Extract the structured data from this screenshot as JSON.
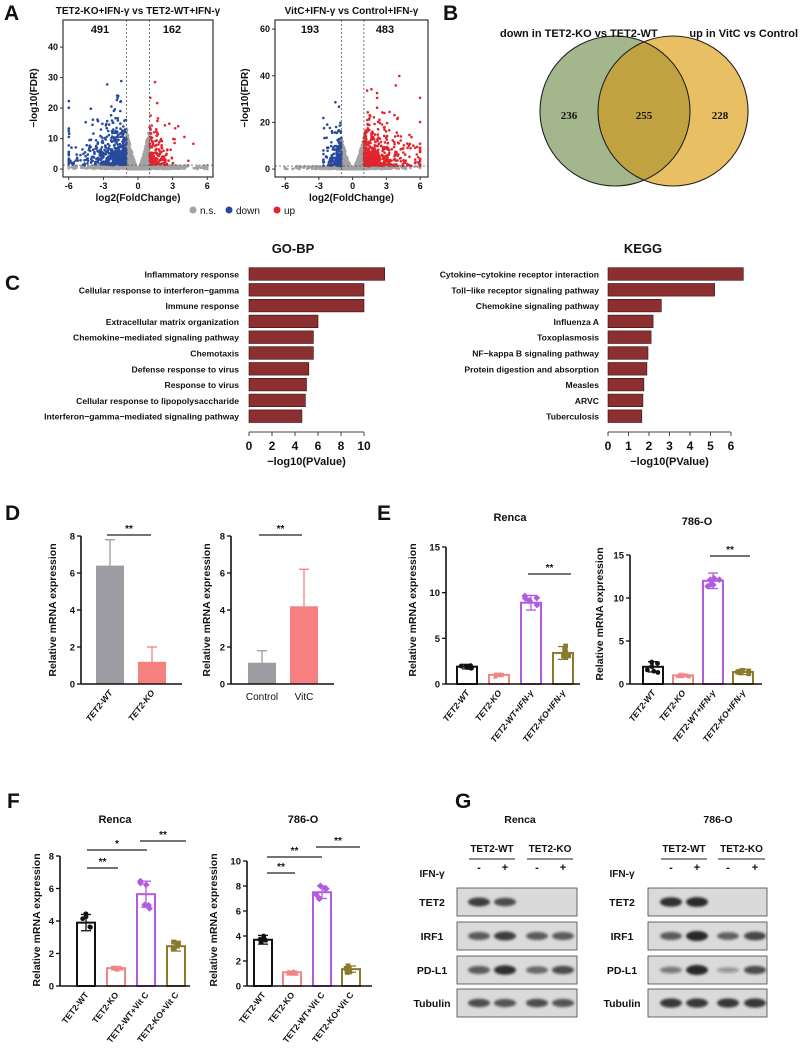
{
  "panel_labels": [
    "A",
    "B",
    "C",
    "D",
    "E",
    "F",
    "G"
  ],
  "volcano_legend": [
    {
      "label": "n.s.",
      "color": "#a3a3a3"
    },
    {
      "label": "down",
      "color": "#274a9c"
    },
    {
      "label": "up",
      "color": "#e2252c"
    }
  ],
  "venn": {
    "left_title": "down in TET2-KO vs TET2-WT",
    "right_title": "up in VitC vs Control",
    "left_only": "236",
    "overlap": "255",
    "right_only": "228",
    "left_title_color": "#1f2bbf",
    "right_title_color": "#d8222b",
    "left_color": "#a4b68b",
    "right_color": "#e8bf63",
    "overlap_color": "#c1a240"
  },
  "chart_data": [
    {
      "id": "A1",
      "type": "scatter",
      "title": "TET2-KO+IFN-γ vs TET2-WT+IFN-γ",
      "xlabel": "log2(FoldChange)",
      "ylabel": "−log10(FDR)",
      "xlim": [
        -6.5,
        6.5
      ],
      "ylim": [
        -2.6,
        48.9
      ],
      "xticks": [
        -6,
        -3,
        0,
        3,
        6
      ],
      "yticks": [
        0,
        10,
        20,
        30,
        40
      ],
      "down_count": "491",
      "up_count": "162",
      "log2fc_threshold": 1,
      "neg_log10_fdr_threshold": 1.3,
      "grid": false
    },
    {
      "id": "A2",
      "type": "scatter",
      "title": "VitC+IFN-γ vs Control+IFN-γ",
      "xlabel": "log2(FoldChange)",
      "ylabel": "−log10(FDR)",
      "xlim": [
        -6.9,
        6.7
      ],
      "ylim": [
        -3.4,
        63.9
      ],
      "xticks": [
        -6,
        -3,
        0,
        3,
        6
      ],
      "yticks": [
        0,
        20,
        40,
        60
      ],
      "down_count": "193",
      "up_count": "483",
      "log2fc_threshold": 1,
      "neg_log10_fdr_threshold": 1.3,
      "grid": false
    },
    {
      "id": "C1",
      "type": "bar",
      "orientation": "horizontal",
      "title": "GO-BP",
      "xlabel": "−log10(PValue)",
      "color": "#8b2f30",
      "categories": [
        "Inflammatory response",
        "Cellular response to interferon−gamma",
        "Immune response",
        "Extracellular matrix organization",
        "Chemokine−mediated signaling pathway",
        "Chemotaxis",
        "Defense response to virus",
        "Response to virus",
        "Cellular response to lipopolysaccharide",
        "Interferon−gamma−mediated signaling pathway"
      ],
      "values": [
        11.8,
        10.0,
        10.0,
        6.0,
        5.6,
        5.6,
        5.2,
        5.0,
        4.9,
        4.6
      ],
      "xticks": [
        0,
        2,
        4,
        6,
        8,
        10
      ]
    },
    {
      "id": "C2",
      "type": "bar",
      "orientation": "horizontal",
      "title": "KEGG",
      "xlabel": "−log10(PValue)",
      "color": "#8b2f30",
      "categories": [
        "Cytokine−cytokine receptor interaction",
        "Toll−like receptor signaling pathway",
        "Chemokine signaling pathway",
        "Influenza A",
        "Toxoplasmosis",
        "NF−kappa B signaling pathway",
        "Protein digestion and absorption",
        "Measles",
        "ARVC",
        "Tuberculosis"
      ],
      "values": [
        6.6,
        5.2,
        2.6,
        2.2,
        2.1,
        1.95,
        1.9,
        1.75,
        1.7,
        1.65
      ],
      "xticks": [
        0,
        1,
        2,
        3,
        4,
        5,
        6
      ]
    },
    {
      "id": "D1",
      "type": "bar",
      "ylabel": "Relative mRNA expression",
      "ylim": [
        0,
        8
      ],
      "yticks": [
        0,
        2,
        4,
        6,
        8
      ],
      "categories": [
        "TET2-WT",
        "TET2-KO"
      ],
      "values": [
        6.4,
        1.2
      ],
      "errors": [
        1.4,
        0.8
      ],
      "colors": [
        "#9c9ca2",
        "#f67f7f"
      ],
      "significance": [
        {
          "from": 0,
          "to": 1,
          "label": "**"
        }
      ]
    },
    {
      "id": "D2",
      "type": "bar",
      "ylabel": "Relative mRNA expression",
      "ylim": [
        0,
        8
      ],
      "yticks": [
        0,
        2,
        4,
        6,
        8
      ],
      "categories": [
        "Control",
        "VitC"
      ],
      "values": [
        1.15,
        4.2
      ],
      "errors": [
        0.65,
        2.0
      ],
      "colors": [
        "#9c9ca2",
        "#f67f7f"
      ],
      "significance": [
        {
          "from": 0,
          "to": 1,
          "label": "**"
        }
      ]
    },
    {
      "id": "E1",
      "type": "bar",
      "title": "Renca",
      "ylabel": "Relative mRNA expression",
      "ylim": [
        0,
        15
      ],
      "yticks": [
        0,
        5,
        10,
        15
      ],
      "categories": [
        "TET2-WT",
        "TET2-KO",
        "TET2-WT+IFN-γ",
        "TET2-KO+IFN-γ"
      ],
      "values": [
        1.9,
        1.0,
        8.9,
        3.4
      ],
      "errors": [
        0.25,
        0.15,
        0.8,
        0.7
      ],
      "colors": [
        "#111111",
        "#f08585",
        "#b15be0",
        "#8c7a2c"
      ],
      "markers": [
        "circle",
        "triangle",
        "diamond",
        "square"
      ],
      "significance": [
        {
          "from": 2,
          "to": 3,
          "label": "**"
        }
      ]
    },
    {
      "id": "E2",
      "type": "bar",
      "title": "786-O",
      "ylabel": "Relative mRNA expression",
      "ylim": [
        0,
        15
      ],
      "yticks": [
        0,
        5,
        10,
        15
      ],
      "categories": [
        "TET2-WT",
        "TET2-KO",
        "TET2-WT+IFN-γ",
        "TET2-KO+IFN-γ"
      ],
      "values": [
        2.0,
        1.0,
        12.0,
        1.4
      ],
      "errors": [
        0.6,
        0.15,
        0.9,
        0.3
      ],
      "colors": [
        "#111111",
        "#f08585",
        "#b15be0",
        "#8c7a2c"
      ],
      "markers": [
        "circle",
        "triangle",
        "diamond",
        "square"
      ],
      "significance": [
        {
          "from": 2,
          "to": 3,
          "label": "**"
        }
      ]
    },
    {
      "id": "F1",
      "type": "bar",
      "title": "Renca",
      "ylabel": "Relative mRNA expression",
      "ylim": [
        0,
        8
      ],
      "yticks": [
        0,
        2,
        4,
        6,
        8
      ],
      "categories": [
        "TET2-WT",
        "TET2-KO",
        "TET2-WT+Vit C",
        "TET2-KO+Vit C"
      ],
      "values": [
        3.9,
        1.1,
        5.65,
        2.45
      ],
      "errors": [
        0.5,
        0.1,
        0.8,
        0.3
      ],
      "colors": [
        "#111111",
        "#f08585",
        "#b15be0",
        "#8c7a2c"
      ],
      "markers": [
        "circle",
        "triangle",
        "diamond",
        "square"
      ],
      "significance": [
        {
          "from": 0,
          "to": 1,
          "label": "**"
        },
        {
          "from": 0,
          "to": 2,
          "label": "*"
        },
        {
          "from": 2,
          "to": 3,
          "label": "**"
        }
      ]
    },
    {
      "id": "F2",
      "type": "bar",
      "title": "786-O",
      "ylabel": "Relative mRNA expression",
      "ylim": [
        0,
        10
      ],
      "yticks": [
        0,
        2,
        4,
        6,
        8,
        10
      ],
      "categories": [
        "TET2-WT",
        "TET2-KO",
        "TET2-WT+Vit C",
        "TET2-KO+Vit C"
      ],
      "values": [
        3.7,
        1.1,
        7.5,
        1.35
      ],
      "errors": [
        0.35,
        0.1,
        0.5,
        0.25
      ],
      "colors": [
        "#111111",
        "#f08585",
        "#b15be0",
        "#8c7a2c"
      ],
      "markers": [
        "circle",
        "triangle",
        "diamond",
        "square"
      ],
      "significance": [
        {
          "from": 0,
          "to": 1,
          "label": "**"
        },
        {
          "from": 0,
          "to": 2,
          "label": "**"
        },
        {
          "from": 2,
          "to": 3,
          "label": "**"
        }
      ]
    }
  ],
  "western_blot": [
    {
      "title": "Renca",
      "groups": [
        "TET2-WT",
        "TET2-KO"
      ],
      "treatment_label": "IFN-γ",
      "lanes": [
        "-",
        "+",
        "-",
        "+"
      ],
      "rows": [
        {
          "protein": "TET2",
          "band_intensity": [
            0.8,
            0.7,
            0,
            0
          ]
        },
        {
          "protein": "IRF1",
          "band_intensity": [
            0.6,
            0.8,
            0.6,
            0.6
          ]
        },
        {
          "protein": "PD-L1",
          "band_intensity": [
            0.6,
            0.9,
            0.5,
            0.7
          ]
        },
        {
          "protein": "Tubulin",
          "band_intensity": [
            0.7,
            0.65,
            0.7,
            0.65
          ]
        }
      ]
    },
    {
      "title": "786-O",
      "groups": [
        "TET2-WT",
        "TET2-KO"
      ],
      "treatment_label": "IFN-γ",
      "lanes": [
        "-",
        "+",
        "-",
        "+"
      ],
      "rows": [
        {
          "protein": "TET2",
          "band_intensity": [
            0.9,
            0.95,
            0,
            0
          ]
        },
        {
          "protein": "IRF1",
          "band_intensity": [
            0.6,
            1.0,
            0.55,
            0.75
          ]
        },
        {
          "protein": "PD-L1",
          "band_intensity": [
            0.35,
            1.0,
            0.15,
            0.7
          ]
        },
        {
          "protein": "Tubulin",
          "band_intensity": [
            0.85,
            0.85,
            0.85,
            0.85
          ]
        }
      ]
    }
  ]
}
